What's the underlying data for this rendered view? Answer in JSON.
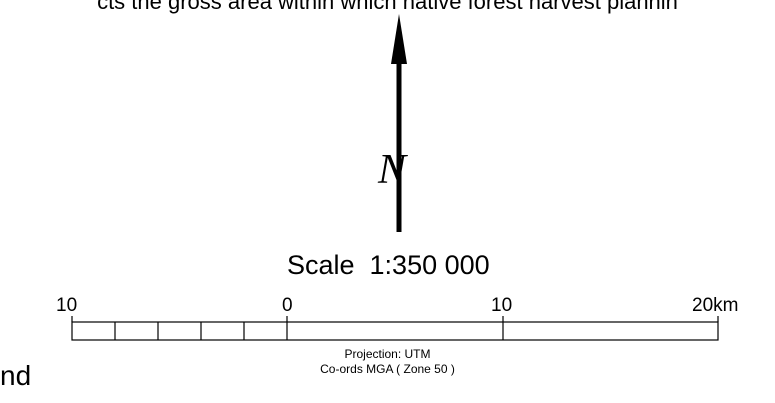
{
  "intro_text": "cts the gross area within which native forest harvest plannin",
  "north_arrow": {
    "label": "N",
    "icon": "north-arrow-icon"
  },
  "scale": {
    "title": "Scale  1:350 000",
    "tick_labels": [
      "10",
      "0",
      "10",
      "20km"
    ],
    "left_segments": 5
  },
  "projection": "Projection: UTM",
  "coords": "Co-ords MGA ( Zone 50 )",
  "legend_fragment": "nd"
}
